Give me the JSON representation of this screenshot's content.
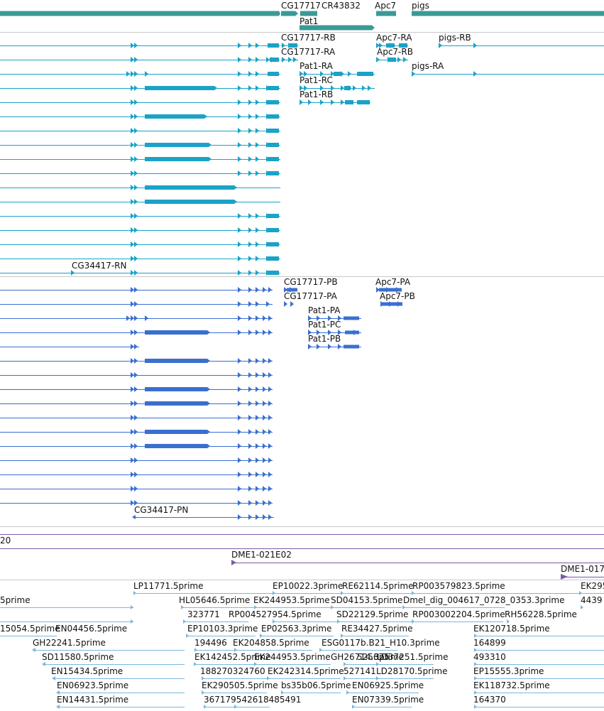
{
  "colors": {
    "gene": "#3a9a96",
    "flybase_transcript": "#1aa3c6",
    "protein": "#3a6fd0",
    "clone": "#7a5aa8",
    "est": "#7ab8dc",
    "divider": "#c8c8c8",
    "text": "#111111"
  },
  "gene_track": {
    "labels": [
      "CG17717",
      "CR43832",
      "Apc7",
      "pigs",
      "Pat1"
    ]
  },
  "transcript_track": {
    "labels": [
      "CG17717-RB",
      "Apc7-RA",
      "pigs-RB",
      "CG17717-RA",
      "Apc7-RB",
      "Pat1-RA",
      "pigs-RA",
      "Pat1-RC",
      "Pat1-RB",
      "CG34417-RN"
    ]
  },
  "protein_track": {
    "labels": [
      "CG17717-PB",
      "Apc7-PA",
      "CG17717-PA",
      "Apc7-PB",
      "Pat1-PA",
      "Pat1-PC",
      "Pat1-PB",
      "CG34417-PN"
    ]
  },
  "clone_track": {
    "labels": [
      "20",
      "DME1-021E02",
      "DME1-017"
    ]
  },
  "est_track": {
    "labels": [
      "LP11771.5prime",
      "EP10022.3prime",
      "RE62114.5prime",
      "RP003579823.5prime",
      "EK295",
      "5prime",
      "HL05646.5prime",
      "EK244953.5prime",
      "SD04153.5prime",
      "Dmel_dig_004617_0728_0353.3prime",
      "4439",
      "323771",
      "RP004527954.5prime",
      "SD22129.5prime",
      "RP003002204.5prime",
      "RH56228.5prime",
      "15054.5prime",
      "EN04456.5prime",
      "EP10103.3prime",
      "EP02563.3prime",
      "RE34427.5prime",
      "EK120718.5prime",
      "GH22241.5prime",
      "194496",
      "EK204858.5prime",
      "ESG0117b.B21_H10.3prime",
      "164899",
      "SD11580.5prime",
      "EK142452.5prime",
      "EK244953.5prime",
      "GH26714.3prime",
      "525675",
      "LD37251.5prime",
      "493310",
      "EN15434.5prime",
      "188270324760",
      "EK242314.5prime",
      "527141",
      "LD28170.5prime",
      "EP15555.3prime",
      "EN06923.5prime",
      "EK290505.5prime",
      "bs35b06.5prime",
      "EN06925.5prime",
      "EK118732.5prime",
      "EN14431.5prime",
      "367179542618485491",
      "EN07339.5prime",
      "164370"
    ]
  }
}
